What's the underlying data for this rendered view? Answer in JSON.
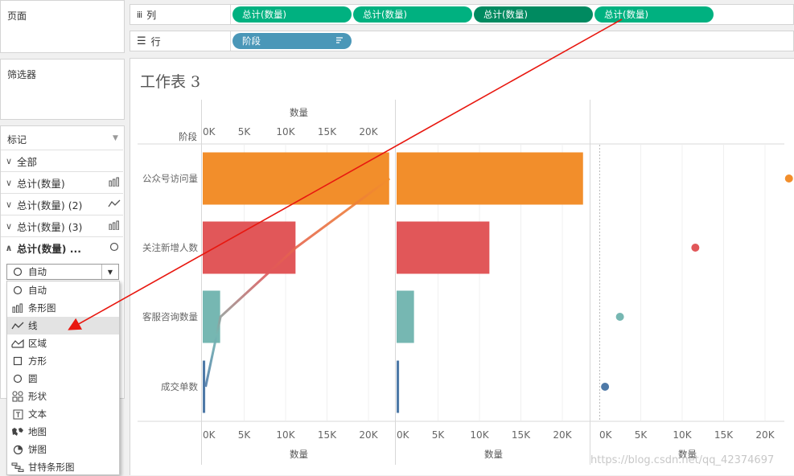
{
  "panels": {
    "pages": "页面",
    "filters": "筛选器",
    "marks": "标记"
  },
  "columns_shelf": {
    "icon": "columns-icon",
    "label": "列",
    "pills": [
      "总计(数量)",
      "总计(数量)",
      "总计(数量)",
      "总计(数量)"
    ]
  },
  "rows_shelf": {
    "icon": "rows-icon",
    "label": "行",
    "pills": [
      "阶段"
    ]
  },
  "marks": {
    "all": "全部",
    "items": [
      {
        "label": "总计(数量)",
        "icon": "bar-icon"
      },
      {
        "label": "总计(数量) (2)",
        "icon": "line-icon"
      },
      {
        "label": "总计(数量) (3)",
        "icon": "bar-icon"
      },
      {
        "label": "总计(数量) ...",
        "icon": "circle-icon"
      }
    ],
    "type_select": {
      "value": "自动"
    },
    "type_options": [
      {
        "label": "自动",
        "icon": "circle-icon"
      },
      {
        "label": "条形图",
        "icon": "bar-icon"
      },
      {
        "label": "线",
        "icon": "line-icon"
      },
      {
        "label": "区域",
        "icon": "area-icon"
      },
      {
        "label": "方形",
        "icon": "square-icon"
      },
      {
        "label": "圆",
        "icon": "circle-icon"
      },
      {
        "label": "形状",
        "icon": "shapes-icon"
      },
      {
        "label": "文本",
        "icon": "text-icon"
      },
      {
        "label": "地图",
        "icon": "map-icon"
      },
      {
        "label": "饼图",
        "icon": "pie-icon"
      },
      {
        "label": "甘特条形图",
        "icon": "gantt-icon"
      }
    ]
  },
  "sheet": {
    "title": "工作表 3",
    "row_header": "阶段",
    "axis_title": "数量"
  },
  "colors": {
    "orange": "#f28e2b",
    "red": "#e15759",
    "teal": "#76b7b2",
    "blue": "#4e79a7",
    "green_pill": "#00b180",
    "blue_pill": "#4a97b8",
    "arrow": "#e8170f"
  },
  "watermark": "https://blog.csdn.net/qq_42374697",
  "chart_data": {
    "type": "bar",
    "categories": [
      "公众号访问量",
      "关注新增人数",
      "客服咨询数量",
      "成交单数"
    ],
    "ticks": [
      "0K",
      "5K",
      "10K",
      "15K",
      "20K"
    ],
    "xlim": [
      0,
      23000
    ],
    "series": [
      {
        "type": "bar",
        "values": [
          22500,
          11200,
          2100,
          300
        ]
      },
      {
        "type": "line",
        "values": [
          22500,
          11200,
          2100,
          300
        ]
      },
      {
        "type": "bar",
        "values": [
          22500,
          11200,
          2100,
          300
        ]
      },
      {
        "type": "circle",
        "values": [
          22500,
          11200,
          2100,
          300
        ]
      }
    ]
  }
}
